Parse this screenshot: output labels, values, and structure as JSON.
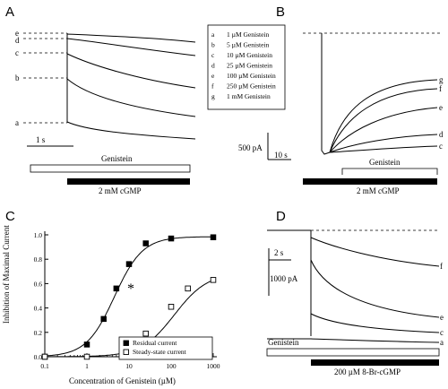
{
  "panels": {
    "A": {
      "label": "A",
      "trace_labels": [
        "e",
        "d",
        "c",
        "b",
        "a"
      ],
      "scale_time": "1 s",
      "bar_label": "Genistein",
      "black_bar_label": "2 mM cGMP"
    },
    "B": {
      "label": "B",
      "legend": [
        {
          "key": "a",
          "text": "1 µM Genistein"
        },
        {
          "key": "b",
          "text": "5 µM Genistein"
        },
        {
          "key": "c",
          "text": "10 µM Genistein"
        },
        {
          "key": "d",
          "text": "25 µM Genistein"
        },
        {
          "key": "e",
          "text": "100 µM Genistein"
        },
        {
          "key": "f",
          "text": "250 µM Genistein"
        },
        {
          "key": "g",
          "text": "1 mM Genistein"
        }
      ],
      "trace_labels": [
        "g",
        "f",
        "e",
        "d",
        "c"
      ],
      "scale_current": "500 pA",
      "scale_time": "10 s",
      "bar_label": "Genistein",
      "black_bar_label": "2 mM cGMP"
    },
    "C": {
      "label": "C",
      "asterisk": "*"
    },
    "D": {
      "label": "D",
      "scale_time": "2 s",
      "scale_current": "1000 pA",
      "trace_labels": [
        "f",
        "e",
        "c",
        "a"
      ],
      "bar_label": "Genistein",
      "black_bar_label": "200 µM 8-Br-cGMP"
    }
  },
  "chart_data": {
    "type": "line",
    "title": "",
    "xlabel": "Concentration of Genistein (µM)",
    "ylabel": "Inhibition of Maximal Current",
    "xscale": "log",
    "xlim": [
      0.1,
      1000
    ],
    "ylim": [
      0.0,
      1.0
    ],
    "xticks": [
      "0.1",
      "1",
      "10",
      "100",
      "1000"
    ],
    "yticks": [
      "0.0",
      "0.2",
      "0.4",
      "0.6",
      "0.8",
      "1.0"
    ],
    "legend_position": "bottom-right",
    "series": [
      {
        "name": "Residual current",
        "marker": "filled-square",
        "x": [
          0.1,
          1,
          2.5,
          5,
          10,
          25,
          100,
          1000
        ],
        "y": [
          0.0,
          0.1,
          0.31,
          0.56,
          0.76,
          0.93,
          0.97,
          0.98
        ]
      },
      {
        "name": "Steady-state current",
        "marker": "open-square",
        "x": [
          0.1,
          1,
          10,
          25,
          100,
          250,
          1000
        ],
        "y": [
          0.0,
          0.0,
          0.08,
          0.19,
          0.41,
          0.56,
          0.63
        ]
      }
    ]
  }
}
